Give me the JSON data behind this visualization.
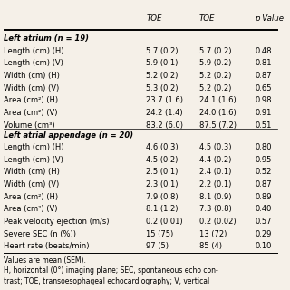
{
  "header_col1": "",
  "header_col2": "TOE",
  "header_col3": "TOE",
  "header_col4": "p Value",
  "section1_title": "Left atrium (n = 19)",
  "section2_title": "Left atrial appendage (n = 20)",
  "rows": [
    {
      "label": "Length (cm) (H)",
      "v1": "5.7 (0.2)",
      "v2": "5.7 (0.2)",
      "p": "0.48"
    },
    {
      "label": "Length (cm) (V)",
      "v1": "5.9 (0.1)",
      "v2": "5.9 (0.2)",
      "p": "0.81"
    },
    {
      "label": "Width (cm) (H)",
      "v1": "5.2 (0.2)",
      "v2": "5.2 (0.2)",
      "p": "0.87"
    },
    {
      "label": "Width (cm) (V)",
      "v1": "5.3 (0.2)",
      "v2": "5.2 (0.2)",
      "p": "0.65"
    },
    {
      "label": "Area (cm²) (H)",
      "v1": "23.7 (1.6)",
      "v2": "24.1 (1.6)",
      "p": "0.98"
    },
    {
      "label": "Area (cm²) (V)",
      "v1": "24.2 (1.4)",
      "v2": "24.0 (1.6)",
      "p": "0.91"
    },
    {
      "label": "Volume (cm³)",
      "v1": "83.2 (6.0)",
      "v2": "87.5 (7.2)",
      "p": "0.51"
    },
    {
      "label": "Length (cm) (H)",
      "v1": "4.6 (0.3)",
      "v2": "4.5 (0.3)",
      "p": "0.80"
    },
    {
      "label": "Length (cm) (V)",
      "v1": "4.5 (0.2)",
      "v2": "4.4 (0.2)",
      "p": "0.95"
    },
    {
      "label": "Width (cm) (H)",
      "v1": "2.5 (0.1)",
      "v2": "2.4 (0.1)",
      "p": "0.52"
    },
    {
      "label": "Width (cm) (V)",
      "v1": "2.3 (0.1)",
      "v2": "2.2 (0.1)",
      "p": "0.87"
    },
    {
      "label": "Area (cm²) (H)",
      "v1": "7.9 (0.8)",
      "v2": "8.1 (0.9)",
      "p": "0.89"
    },
    {
      "label": "Area (cm²) (V)",
      "v1": "8.1 (1.2)",
      "v2": "7.3 (0.8)",
      "p": "0.40"
    },
    {
      "label": "Peak velocity ejection (m/s)",
      "v1": "0.2 (0.01)",
      "v2": "0.2 (0.02)",
      "p": "0.57"
    },
    {
      "label": "Severe SEC (n (%))",
      "v1": "15 (75)",
      "v2": "13 (72)",
      "p": "0.29"
    },
    {
      "label": "Heart rate (beats/min)",
      "v1": "97 (5)",
      "v2": "85 (4)",
      "p": "0.10"
    }
  ],
  "footnote": "Values are mean (SEM).\nH, horizontal (0°) imaging plane; SEC, spontaneous echo con-\ntrast; TOE, transoesophageal echocardiography; V, vertical",
  "bg_color": "#f5f0e8",
  "text_color": "#000000",
  "font_size": 6.0,
  "header_font_size": 6.2
}
